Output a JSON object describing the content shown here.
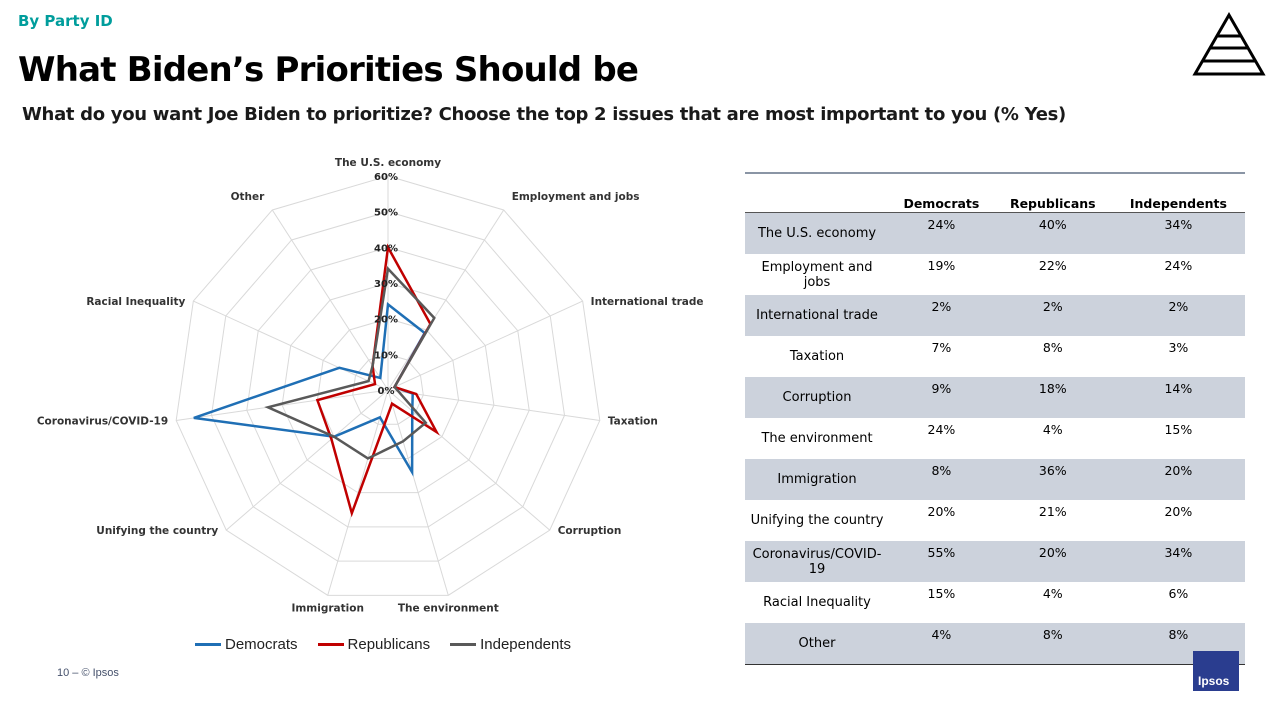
{
  "header": {
    "kicker": "By Party ID",
    "title": "What Biden’s Priorities Should be",
    "subtitle": "What do you want Joe Biden to prioritize? Choose the top 2 issues that are most important to you (% Yes)"
  },
  "chart_data": {
    "type": "radar",
    "categories": [
      "The U.S. economy",
      "Employment and jobs",
      "International trade",
      "Taxation",
      "Corruption",
      "The environment",
      "Immigration",
      "Unifying the country",
      "Coronavirus/COVID-19",
      "Racial Inequality",
      "Other"
    ],
    "rlim": [
      0,
      60
    ],
    "ticks": [
      "0%",
      "10%",
      "20%",
      "30%",
      "40%",
      "50%",
      "60%"
    ],
    "grid": true,
    "legend": "bottom",
    "series": [
      {
        "name": "Democrats",
        "color": "#1f6fb5",
        "values": [
          24,
          19,
          2,
          7,
          9,
          24,
          8,
          20,
          55,
          15,
          4
        ]
      },
      {
        "name": "Republicans",
        "color": "#c00000",
        "values": [
          40,
          22,
          2,
          8,
          18,
          4,
          36,
          21,
          20,
          4,
          8
        ]
      },
      {
        "name": "Independents",
        "color": "#595959",
        "values": [
          34,
          24,
          2,
          3,
          14,
          15,
          20,
          20,
          34,
          6,
          8
        ]
      }
    ]
  },
  "table": {
    "headers": [
      "",
      "Democrats",
      "Republicans",
      "Independents"
    ],
    "rows": [
      [
        "The U.S. economy",
        "24%",
        "40%",
        "34%"
      ],
      [
        "Employment and jobs",
        "19%",
        "22%",
        "24%"
      ],
      [
        "International trade",
        "2%",
        "2%",
        "2%"
      ],
      [
        "Taxation",
        "7%",
        "8%",
        "3%"
      ],
      [
        "Corruption",
        "9%",
        "18%",
        "14%"
      ],
      [
        "The environment",
        "24%",
        "4%",
        "15%"
      ],
      [
        "Immigration",
        "8%",
        "36%",
        "20%"
      ],
      [
        "Unifying the country",
        "20%",
        "21%",
        "20%"
      ],
      [
        "Coronavirus/COVID-19",
        "55%",
        "20%",
        "34%"
      ],
      [
        "Racial Inequality",
        "15%",
        "4%",
        "6%"
      ],
      [
        "Other",
        "4%",
        "8%",
        "8%"
      ]
    ]
  },
  "footer": {
    "page": "10 –  © Ipsos",
    "logo_text": "Ipsos"
  },
  "icons": {
    "top_right": "pyramid-icon"
  }
}
